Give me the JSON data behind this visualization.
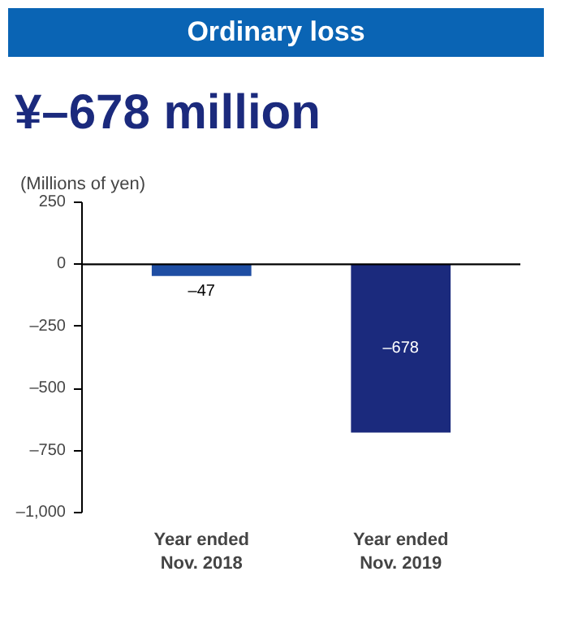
{
  "chart_data": {
    "type": "bar",
    "title": "Ordinary loss",
    "subtitle": "¥–678 million",
    "ylabel": "(Millions of yen)",
    "categories": [
      "Year ended\nNov. 2018",
      "Year ended\nNov. 2019"
    ],
    "values": [
      -47,
      -678
    ],
    "colors": [
      "#1f4ea3",
      "#1b2a7d"
    ],
    "value_labels": [
      "–47",
      "–678"
    ],
    "ylim": [
      -1000,
      250
    ],
    "yticks": [
      250,
      0,
      {
        "value": -250,
        "label": "–250"
      },
      {
        "value": -500,
        "label": "–500"
      },
      {
        "value": -750,
        "label": "–750"
      },
      {
        "value": -1000,
        "label": "–1,000"
      }
    ],
    "ref_lines": [
      {
        "axis": "y",
        "value": 0,
        "color": "#000000"
      }
    ],
    "grid": false
  }
}
